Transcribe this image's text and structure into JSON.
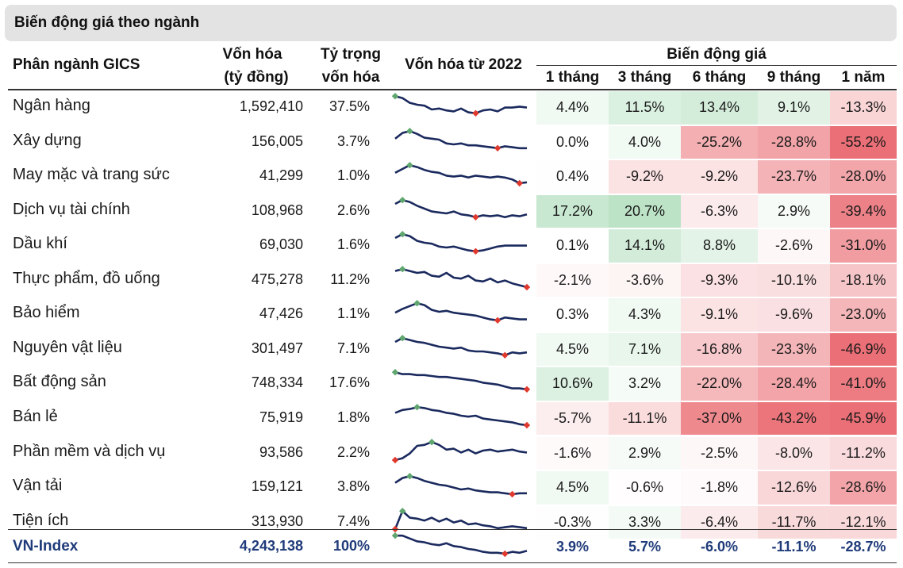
{
  "title": "Biến động giá theo ngành",
  "colors": {
    "positive": "#63be7b",
    "negative": "#e8636a",
    "spark_line": "#1b2a5e",
    "spark_max_marker": "#5fa66f",
    "spark_min_marker": "#e03a2e",
    "total_text": "#1f3b7a"
  },
  "headers": {
    "sector": "Phân ngành GICS",
    "mcap_line1": "Vốn hóa",
    "mcap_line2": "(tỷ đồng)",
    "weight_line1": "Tỷ trọng",
    "weight_line2": "vốn hóa",
    "spark": "Vốn hóa từ 2022",
    "price_change": "Biến động giá",
    "periods": [
      "1 tháng",
      "3 tháng",
      "6 tháng",
      "9 tháng",
      "1 năm"
    ]
  },
  "chart_data": {
    "type": "table",
    "columns": [
      "Phân ngành GICS",
      "Vốn hóa (tỷ đồng)",
      "Tỷ trọng vốn hóa",
      "Vốn hóa từ 2022",
      "1 tháng",
      "3 tháng",
      "6 tháng",
      "9 tháng",
      "1 năm"
    ],
    "rows": [
      {
        "name": "Ngân hàng",
        "mcap": "1,592,410",
        "weight": "37.5%",
        "changes": [
          "4.4%",
          "11.5%",
          "13.4%",
          "9.1%",
          "-13.3%"
        ],
        "values": [
          4.4,
          11.5,
          13.4,
          9.1,
          -13.3
        ],
        "trend": [
          0.95,
          0.85,
          0.6,
          0.5,
          0.45,
          0.25,
          0.3,
          0.2,
          0.15,
          0.3,
          0.1,
          0.05,
          0.2,
          0.25,
          0.15,
          0.35,
          0.35,
          0.4,
          0.35
        ]
      },
      {
        "name": "Xây dựng",
        "mcap": "156,005",
        "weight": "3.7%",
        "changes": [
          "0.0%",
          "4.0%",
          "-25.2%",
          "-28.8%",
          "-55.2%"
        ],
        "values": [
          0.0,
          4.0,
          -25.2,
          -28.8,
          -55.2
        ],
        "trend": [
          0.55,
          0.85,
          0.95,
          0.8,
          0.6,
          0.55,
          0.5,
          0.3,
          0.25,
          0.3,
          0.2,
          0.2,
          0.15,
          0.1,
          0.05,
          0.15,
          0.1,
          0.05,
          0.05
        ]
      },
      {
        "name": "May mặc và trang sức",
        "mcap": "41,299",
        "weight": "1.0%",
        "changes": [
          "0.4%",
          "-9.2%",
          "-9.2%",
          "-23.7%",
          "-28.0%"
        ],
        "values": [
          0.4,
          -9.2,
          -9.2,
          -23.7,
          -28.0
        ],
        "trend": [
          0.55,
          0.75,
          0.95,
          0.85,
          0.7,
          0.6,
          0.55,
          0.4,
          0.35,
          0.4,
          0.3,
          0.4,
          0.35,
          0.3,
          0.35,
          0.3,
          0.2,
          0.0,
          0.05
        ]
      },
      {
        "name": "Dịch vụ tài chính",
        "mcap": "108,968",
        "weight": "2.6%",
        "changes": [
          "17.2%",
          "20.7%",
          "-6.3%",
          "2.9%",
          "-39.4%"
        ],
        "values": [
          17.2,
          20.7,
          -6.3,
          2.9,
          -39.4
        ],
        "trend": [
          0.75,
          0.95,
          0.85,
          0.65,
          0.5,
          0.35,
          0.3,
          0.25,
          0.35,
          0.2,
          0.15,
          0.05,
          0.15,
          0.1,
          0.15,
          0.05,
          0.15,
          0.1,
          0.2
        ]
      },
      {
        "name": "Dầu khí",
        "mcap": "69,030",
        "weight": "1.6%",
        "changes": [
          "0.1%",
          "14.1%",
          "8.8%",
          "-2.6%",
          "-31.0%"
        ],
        "values": [
          0.1,
          14.1,
          8.8,
          -2.6,
          -31.0
        ],
        "trend": [
          0.75,
          0.95,
          0.85,
          0.6,
          0.5,
          0.45,
          0.3,
          0.25,
          0.3,
          0.2,
          0.1,
          0.05,
          0.1,
          0.2,
          0.3,
          0.35,
          0.35,
          0.35,
          0.35
        ]
      },
      {
        "name": "Thực phẩm, đồ uống",
        "mcap": "475,278",
        "weight": "11.2%",
        "changes": [
          "-2.1%",
          "-3.6%",
          "-9.3%",
          "-10.1%",
          "-18.1%"
        ],
        "values": [
          -2.1,
          -3.6,
          -9.3,
          -10.1,
          -18.1
        ],
        "trend": [
          0.85,
          0.95,
          0.85,
          0.75,
          0.8,
          0.6,
          0.55,
          0.75,
          0.5,
          0.45,
          0.6,
          0.35,
          0.3,
          0.45,
          0.25,
          0.35,
          0.2,
          0.1,
          0.0
        ]
      },
      {
        "name": "Bảo hiểm",
        "mcap": "47,426",
        "weight": "1.1%",
        "changes": [
          "0.3%",
          "4.3%",
          "-9.1%",
          "-9.6%",
          "-23.0%"
        ],
        "values": [
          0.3,
          4.3,
          -9.1,
          -9.6,
          -23.0
        ],
        "trend": [
          0.45,
          0.65,
          0.8,
          0.95,
          0.85,
          0.6,
          0.5,
          0.55,
          0.45,
          0.4,
          0.35,
          0.3,
          0.2,
          0.1,
          0.05,
          0.2,
          0.15,
          0.1,
          0.1
        ]
      },
      {
        "name": "Nguyên vật liệu",
        "mcap": "301,497",
        "weight": "7.1%",
        "changes": [
          "4.5%",
          "7.1%",
          "-16.8%",
          "-23.3%",
          "-46.9%"
        ],
        "values": [
          4.5,
          7.1,
          -16.8,
          -23.3,
          -46.9
        ],
        "trend": [
          0.75,
          0.95,
          0.85,
          0.75,
          0.7,
          0.6,
          0.5,
          0.45,
          0.4,
          0.45,
          0.3,
          0.25,
          0.25,
          0.2,
          0.15,
          0.05,
          0.2,
          0.15,
          0.2
        ]
      },
      {
        "name": "Bất động sản",
        "mcap": "748,334",
        "weight": "17.6%",
        "changes": [
          "10.6%",
          "3.2%",
          "-22.0%",
          "-28.4%",
          "-41.0%"
        ],
        "values": [
          10.6,
          3.2,
          -22.0,
          -28.4,
          -41.0
        ],
        "trend": [
          0.95,
          0.85,
          0.85,
          0.8,
          0.8,
          0.75,
          0.7,
          0.7,
          0.65,
          0.6,
          0.55,
          0.5,
          0.4,
          0.35,
          0.3,
          0.2,
          0.1,
          0.1,
          0.05
        ]
      },
      {
        "name": "Bán lẻ",
        "mcap": "75,919",
        "weight": "1.8%",
        "changes": [
          "-5.7%",
          "-11.1%",
          "-37.0%",
          "-43.2%",
          "-45.9%"
        ],
        "values": [
          -5.7,
          -11.1,
          -37.0,
          -43.2,
          -45.9
        ],
        "trend": [
          0.65,
          0.8,
          0.85,
          0.95,
          0.9,
          0.8,
          0.75,
          0.65,
          0.6,
          0.5,
          0.45,
          0.5,
          0.35,
          0.3,
          0.25,
          0.2,
          0.15,
          0.05,
          0.0
        ]
      },
      {
        "name": "Phần mềm và dịch vụ",
        "mcap": "93,586",
        "weight": "2.2%",
        "changes": [
          "-1.6%",
          "2.9%",
          "-2.5%",
          "-8.0%",
          "-11.2%"
        ],
        "values": [
          -1.6,
          2.9,
          -2.5,
          -8.0,
          -11.2
        ],
        "trend": [
          0.0,
          0.1,
          0.35,
          0.75,
          0.8,
          0.95,
          0.8,
          0.55,
          0.6,
          0.4,
          0.55,
          0.35,
          0.5,
          0.55,
          0.45,
          0.5,
          0.55,
          0.45,
          0.4
        ]
      },
      {
        "name": "Vận tải",
        "mcap": "159,121",
        "weight": "3.8%",
        "changes": [
          "4.5%",
          "-0.6%",
          "-1.8%",
          "-12.6%",
          "-28.6%"
        ],
        "values": [
          4.5,
          -0.6,
          -1.8,
          -12.6,
          -28.6
        ],
        "trend": [
          0.6,
          0.85,
          0.95,
          0.85,
          0.7,
          0.6,
          0.5,
          0.45,
          0.35,
          0.25,
          0.3,
          0.2,
          0.15,
          0.1,
          0.1,
          0.05,
          0.0,
          0.05,
          0.05
        ]
      },
      {
        "name": "Tiện ích",
        "mcap": "313,930",
        "weight": "7.4%",
        "changes": [
          "-0.3%",
          "3.3%",
          "-6.4%",
          "-11.7%",
          "-12.1%"
        ],
        "values": [
          -0.3,
          3.3,
          -6.4,
          -11.7,
          -12.1
        ],
        "trend": [
          0.0,
          0.95,
          0.6,
          0.55,
          0.45,
          0.6,
          0.4,
          0.55,
          0.35,
          0.45,
          0.25,
          0.3,
          0.2,
          0.15,
          0.05,
          0.1,
          0.15,
          0.1,
          0.05
        ]
      },
      {
        "name": "VN-Index",
        "mcap": "4,243,138",
        "weight": "100%",
        "changes": [
          "3.9%",
          "5.7%",
          "-6.0%",
          "-11.1%",
          "-28.7%"
        ],
        "values": [
          3.9,
          5.7,
          -6.0,
          -11.1,
          -28.7
        ],
        "trend": [
          0.95,
          0.95,
          0.8,
          0.65,
          0.6,
          0.5,
          0.45,
          0.55,
          0.4,
          0.35,
          0.25,
          0.2,
          0.1,
          0.05,
          0.05,
          0.0,
          0.1,
          0.05,
          0.15
        ],
        "total": true
      }
    ]
  }
}
